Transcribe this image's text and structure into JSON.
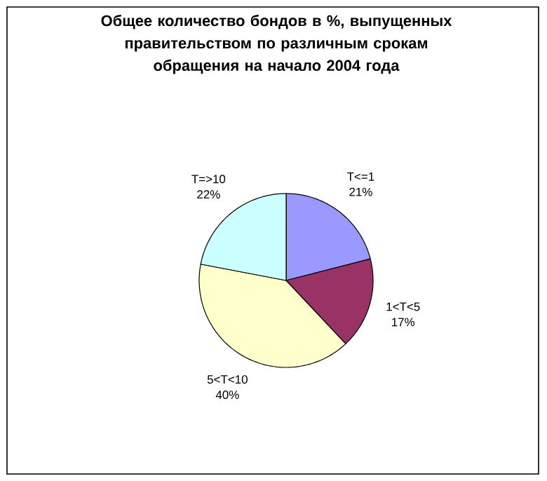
{
  "chart_data": {
    "type": "pie",
    "title": "Общее количество бондов в %, выпущенных правительством по различным срокам обращения на начало 2004 года",
    "categories": [
      "T<=1",
      "1<T<5",
      "5<T<10",
      "T=>10"
    ],
    "values": [
      21,
      17,
      40,
      22
    ],
    "value_labels": [
      "21%",
      "17%",
      "40%",
      "22%"
    ],
    "colors": [
      "#9999ff",
      "#993366",
      "#ffffcc",
      "#ccffff"
    ]
  }
}
